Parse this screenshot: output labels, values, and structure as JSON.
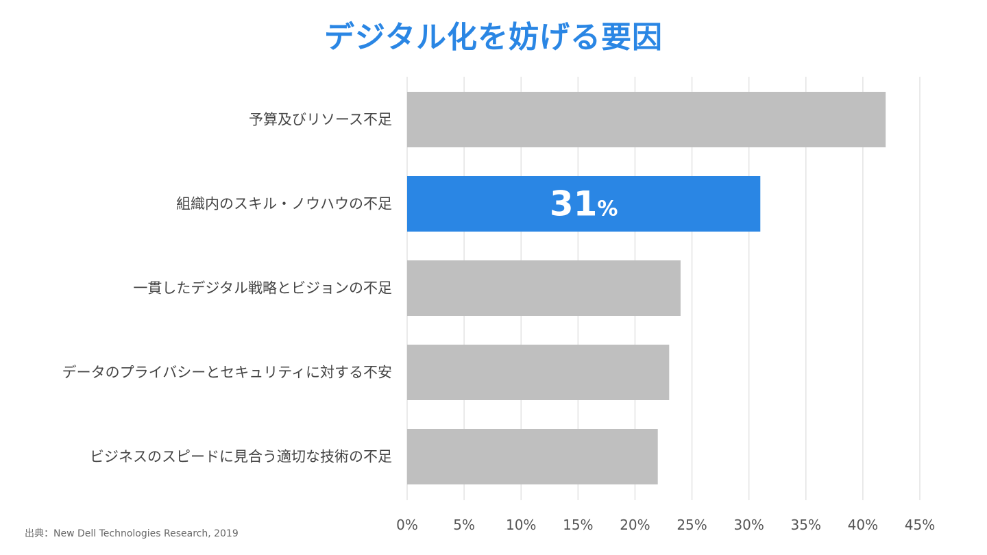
{
  "chart_data": {
    "type": "bar",
    "orientation": "horizontal",
    "title": "デジタル化を妨げる要因",
    "categories": [
      "予算及びリソース不足",
      "組織内のスキル・ノウハウの不足",
      "一貫したデジタル戦略とビジョンの不足",
      "データのプライバシーとセキュリティに対する不安",
      "ビジネスのスピードに見合う適切な技術の不足"
    ],
    "values": [
      42,
      31,
      24,
      23,
      22
    ],
    "highlight_index": 1,
    "highlight_label_number": "31",
    "highlight_label_unit": "%",
    "xlim": [
      0,
      45
    ],
    "xticks": [
      0,
      5,
      10,
      15,
      20,
      25,
      30,
      35,
      40,
      45
    ],
    "xtick_labels": [
      "0%",
      "5%",
      "10%",
      "15%",
      "20%",
      "25%",
      "30%",
      "35%",
      "40%",
      "45%"
    ],
    "xlabel": "",
    "ylabel": "",
    "grid": true,
    "colors": {
      "bar": "#bfbfbf",
      "highlight": "#2a86e4",
      "title": "#2a86e4"
    }
  },
  "source": "出典：New Dell Technologies Research, 2019"
}
